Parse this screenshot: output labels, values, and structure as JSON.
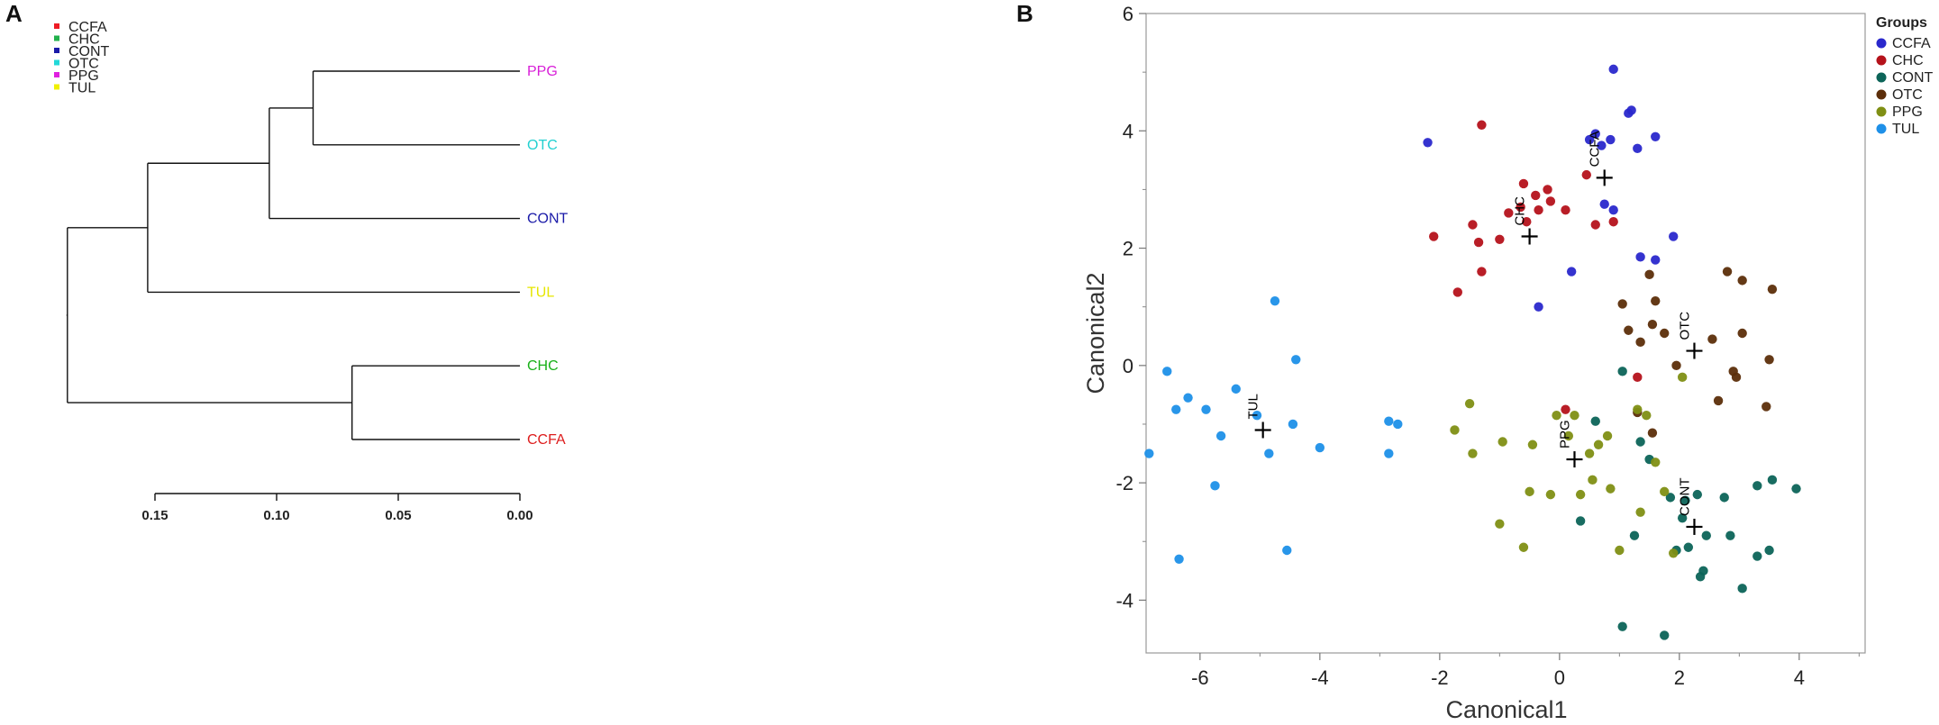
{
  "panels": {
    "a": "A",
    "b": "B"
  },
  "chart_data": [
    {
      "type": "dendrogram",
      "legend": [
        {
          "label": "CCFA",
          "color": "#ee1c25"
        },
        {
          "label": "CHC",
          "color": "#22b14c"
        },
        {
          "label": "CONT",
          "color": "#1a1aa8"
        },
        {
          "label": "OTC",
          "color": "#22d8d8"
        },
        {
          "label": "PPG",
          "color": "#e020e0"
        },
        {
          "label": "TUL",
          "color": "#f0f000"
        }
      ],
      "leaves": [
        {
          "label": "PPG",
          "color": "#d81ed8"
        },
        {
          "label": "OTC",
          "color": "#22d0d0"
        },
        {
          "label": "CONT",
          "color": "#1a1aa8"
        },
        {
          "label": "TUL",
          "color": "#e6e600"
        },
        {
          "label": "CHC",
          "color": "#18b018"
        },
        {
          "label": "CCFA",
          "color": "#dd1c1c"
        }
      ],
      "merges": [
        {
          "a": "leaf:0",
          "b": "leaf:1",
          "height": 0.085
        },
        {
          "a": "node:0",
          "b": "leaf:2",
          "height": 0.103
        },
        {
          "a": "node:1",
          "b": "leaf:3",
          "height": 0.153
        },
        {
          "a": "leaf:4",
          "b": "leaf:5",
          "height": 0.069
        },
        {
          "a": "node:2",
          "b": "node:3",
          "height": 0.186
        }
      ],
      "axis": {
        "ticks": [
          0.15,
          0.1,
          0.05,
          0.0
        ],
        "tick_labels": [
          "0.15",
          "0.10",
          "0.05",
          "0.00"
        ],
        "range": [
          0.0,
          0.15
        ]
      }
    },
    {
      "type": "scatter",
      "xlabel": "Canonical1",
      "ylabel": "Canonical2",
      "xlim": [
        -6.9,
        5.1
      ],
      "ylim": [
        -4.9,
        6.0
      ],
      "xticks": [
        -6,
        -4,
        -2,
        0,
        2,
        4
      ],
      "yticks": [
        -4,
        -2,
        0,
        2,
        4,
        6
      ],
      "legend_title": "Groups",
      "series": [
        {
          "name": "CCFA",
          "color": "#2a28cc",
          "centroid": [
            0.75,
            3.2
          ],
          "points": [
            [
              -2.2,
              3.8
            ],
            [
              0.5,
              3.85
            ],
            [
              0.6,
              3.95
            ],
            [
              0.7,
              3.75
            ],
            [
              0.85,
              3.85
            ],
            [
              0.9,
              5.05
            ],
            [
              1.15,
              4.3
            ],
            [
              1.2,
              4.35
            ],
            [
              1.3,
              3.7
            ],
            [
              1.6,
              3.9
            ],
            [
              0.75,
              2.75
            ],
            [
              0.9,
              2.65
            ],
            [
              1.35,
              1.85
            ],
            [
              1.6,
              1.8
            ],
            [
              1.9,
              2.2
            ],
            [
              -0.35,
              1.0
            ],
            [
              0.2,
              1.6
            ]
          ]
        },
        {
          "name": "CHC",
          "color": "#b5121b",
          "centroid": [
            -0.5,
            2.2
          ],
          "points": [
            [
              -1.3,
              4.1
            ],
            [
              -2.1,
              2.2
            ],
            [
              -1.7,
              1.25
            ],
            [
              -1.45,
              2.4
            ],
            [
              -1.35,
              2.1
            ],
            [
              -1.3,
              1.6
            ],
            [
              -1.0,
              2.15
            ],
            [
              -0.85,
              2.6
            ],
            [
              -0.6,
              3.1
            ],
            [
              -0.65,
              2.7
            ],
            [
              -0.55,
              2.45
            ],
            [
              -0.4,
              2.9
            ],
            [
              -0.35,
              2.65
            ],
            [
              -0.2,
              3.0
            ],
            [
              -0.15,
              2.8
            ],
            [
              0.1,
              2.65
            ],
            [
              0.45,
              3.25
            ],
            [
              0.6,
              2.4
            ],
            [
              0.9,
              2.45
            ],
            [
              0.1,
              -0.75
            ],
            [
              1.3,
              -0.2
            ]
          ]
        },
        {
          "name": "CONT",
          "color": "#0c6458",
          "centroid": [
            2.25,
            -2.75
          ],
          "points": [
            [
              0.6,
              -0.95
            ],
            [
              1.35,
              -1.3
            ],
            [
              1.5,
              -1.6
            ],
            [
              1.85,
              -2.25
            ],
            [
              2.05,
              -2.6
            ],
            [
              2.1,
              -2.3
            ],
            [
              2.3,
              -2.2
            ],
            [
              2.4,
              -3.5
            ],
            [
              2.35,
              -3.6
            ],
            [
              2.15,
              -3.1
            ],
            [
              2.45,
              -2.9
            ],
            [
              2.75,
              -2.25
            ],
            [
              2.85,
              -2.9
            ],
            [
              3.05,
              -3.8
            ],
            [
              3.3,
              -2.05
            ],
            [
              3.55,
              -1.95
            ],
            [
              3.5,
              -3.15
            ],
            [
              3.3,
              -3.25
            ],
            [
              3.95,
              -2.1
            ],
            [
              1.05,
              -4.45
            ],
            [
              1.75,
              -4.6
            ],
            [
              1.95,
              -3.15
            ],
            [
              0.35,
              -2.65
            ],
            [
              1.25,
              -2.9
            ],
            [
              1.05,
              -0.1
            ]
          ]
        },
        {
          "name": "OTC",
          "color": "#5c2e0a",
          "centroid": [
            2.25,
            0.25
          ],
          "points": [
            [
              2.8,
              1.6
            ],
            [
              3.05,
              1.45
            ],
            [
              3.55,
              1.3
            ],
            [
              3.5,
              0.1
            ],
            [
              3.05,
              0.55
            ],
            [
              2.55,
              0.45
            ],
            [
              2.9,
              -0.1
            ],
            [
              2.95,
              -0.2
            ],
            [
              3.45,
              -0.7
            ],
            [
              2.65,
              -0.6
            ],
            [
              1.95,
              0.0
            ],
            [
              1.75,
              0.55
            ],
            [
              1.55,
              0.7
            ],
            [
              1.35,
              0.4
            ],
            [
              1.15,
              0.6
            ],
            [
              1.05,
              1.05
            ],
            [
              1.6,
              1.1
            ],
            [
              1.5,
              1.55
            ],
            [
              1.55,
              -1.15
            ],
            [
              1.3,
              -0.8
            ]
          ]
        },
        {
          "name": "PPG",
          "color": "#7f8f14",
          "centroid": [
            0.25,
            -1.6
          ],
          "points": [
            [
              -1.5,
              -0.65
            ],
            [
              -1.75,
              -1.1
            ],
            [
              -1.45,
              -1.5
            ],
            [
              -0.95,
              -1.3
            ],
            [
              -0.45,
              -1.35
            ],
            [
              -0.05,
              -0.85
            ],
            [
              0.15,
              -1.2
            ],
            [
              0.25,
              -0.85
            ],
            [
              0.5,
              -1.5
            ],
            [
              0.65,
              -1.35
            ],
            [
              0.8,
              -1.2
            ],
            [
              1.3,
              -0.75
            ],
            [
              1.45,
              -0.85
            ],
            [
              1.6,
              -1.65
            ],
            [
              0.55,
              -1.95
            ],
            [
              0.85,
              -2.1
            ],
            [
              -0.5,
              -2.15
            ],
            [
              -0.15,
              -2.2
            ],
            [
              0.35,
              -2.2
            ],
            [
              -1.0,
              -2.7
            ],
            [
              -0.6,
              -3.1
            ],
            [
              1.0,
              -3.15
            ],
            [
              1.35,
              -2.5
            ],
            [
              1.75,
              -2.15
            ],
            [
              2.05,
              -0.2
            ],
            [
              1.9,
              -3.2
            ]
          ]
        },
        {
          "name": "TUL",
          "color": "#1e90e8",
          "centroid": [
            -4.95,
            -1.1
          ],
          "points": [
            [
              -6.85,
              -1.5
            ],
            [
              -6.55,
              -0.1
            ],
            [
              -6.4,
              -0.75
            ],
            [
              -6.2,
              -0.55
            ],
            [
              -6.35,
              -3.3
            ],
            [
              -5.9,
              -0.75
            ],
            [
              -5.75,
              -2.05
            ],
            [
              -5.65,
              -1.2
            ],
            [
              -5.4,
              -0.4
            ],
            [
              -5.05,
              -0.85
            ],
            [
              -4.85,
              -1.5
            ],
            [
              -4.75,
              1.1
            ],
            [
              -4.55,
              -3.15
            ],
            [
              -4.45,
              -1.0
            ],
            [
              -4.4,
              0.1
            ],
            [
              -4.0,
              -1.4
            ],
            [
              -2.85,
              -0.95
            ],
            [
              -2.7,
              -1.0
            ],
            [
              -2.85,
              -1.5
            ]
          ]
        }
      ]
    }
  ]
}
